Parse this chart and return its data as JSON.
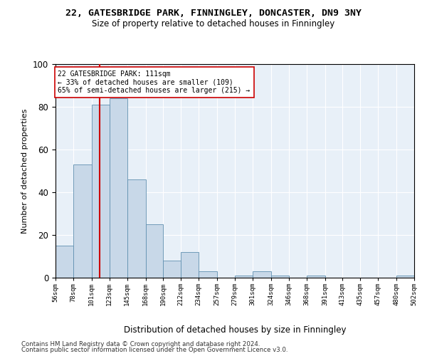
{
  "title": "22, GATESBRIDGE PARK, FINNINGLEY, DONCASTER, DN9 3NY",
  "subtitle": "Size of property relative to detached houses in Finningley",
  "xlabel": "Distribution of detached houses by size in Finningley",
  "ylabel": "Number of detached properties",
  "bin_edges": [
    56,
    78,
    101,
    123,
    145,
    168,
    190,
    212,
    234,
    257,
    279,
    301,
    324,
    346,
    368,
    391,
    413,
    435,
    457,
    480,
    502
  ],
  "bin_labels": [
    "56sqm",
    "78sqm",
    "101sqm",
    "123sqm",
    "145sqm",
    "168sqm",
    "190sqm",
    "212sqm",
    "234sqm",
    "257sqm",
    "279sqm",
    "301sqm",
    "324sqm",
    "346sqm",
    "368sqm",
    "391sqm",
    "413sqm",
    "435sqm",
    "457sqm",
    "480sqm",
    "502sqm"
  ],
  "counts": [
    15,
    53,
    81,
    84,
    46,
    25,
    8,
    12,
    3,
    0,
    1,
    3,
    1,
    0,
    1,
    0,
    0,
    0,
    0,
    1
  ],
  "bar_color": "#c8d8e8",
  "bar_edge_color": "#6090b0",
  "vline_x": 111,
  "vline_color": "#cc0000",
  "annotation_text": "22 GATESBRIDGE PARK: 111sqm\n← 33% of detached houses are smaller (109)\n65% of semi-detached houses are larger (215) →",
  "annotation_box_color": "#ffffff",
  "annotation_box_edge_color": "#cc0000",
  "ylim": [
    0,
    100
  ],
  "yticks": [
    0,
    20,
    40,
    60,
    80,
    100
  ],
  "bg_color": "#e8f0f8",
  "footer_line1": "Contains HM Land Registry data © Crown copyright and database right 2024.",
  "footer_line2": "Contains public sector information licensed under the Open Government Licence v3.0."
}
